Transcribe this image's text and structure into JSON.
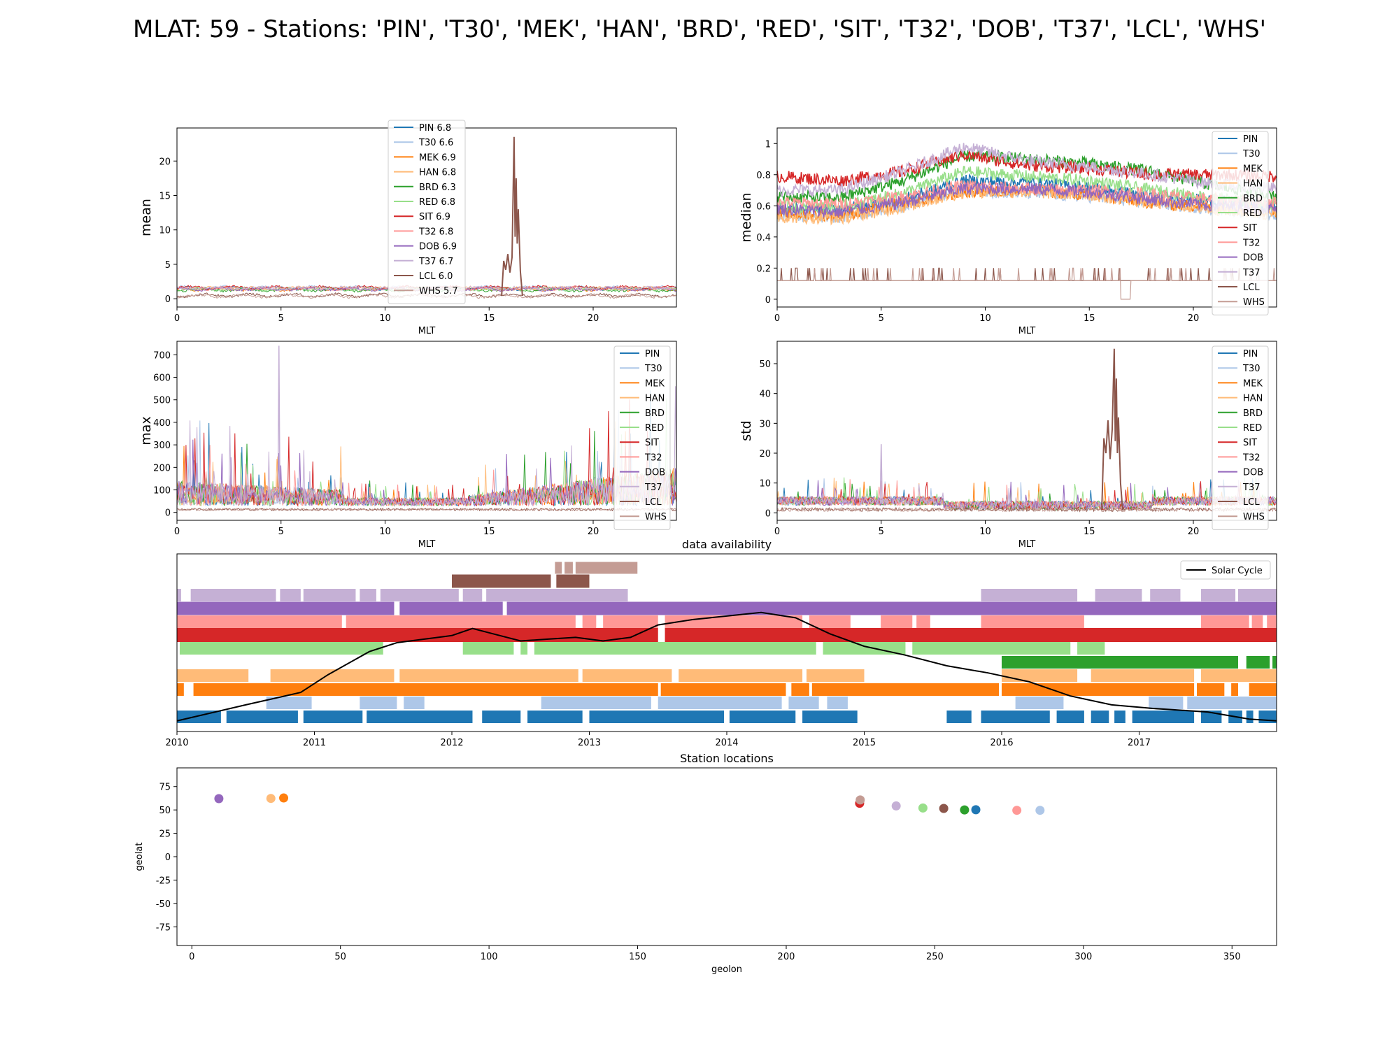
{
  "figure": {
    "title": "MLAT: 59 - Stations: 'PIN', 'T30', 'MEK', 'HAN', 'BRD', 'RED', 'SIT', 'T32', 'DOB', 'T37', 'LCL', 'WHS'"
  },
  "stations": [
    {
      "code": "PIN",
      "color": "#1f77b4"
    },
    {
      "code": "T30",
      "color": "#aec7e8"
    },
    {
      "code": "MEK",
      "color": "#ff7f0e"
    },
    {
      "code": "HAN",
      "color": "#ffbb78"
    },
    {
      "code": "BRD",
      "color": "#2ca02c"
    },
    {
      "code": "RED",
      "color": "#98df8a"
    },
    {
      "code": "SIT",
      "color": "#d62728"
    },
    {
      "code": "T32",
      "color": "#ff9896"
    },
    {
      "code": "DOB",
      "color": "#9467bd"
    },
    {
      "code": "T37",
      "color": "#c5b0d5"
    },
    {
      "code": "LCL",
      "color": "#8c564b"
    },
    {
      "code": "WHS",
      "color": "#c49c94"
    }
  ],
  "chart_data": [
    {
      "id": "mean",
      "type": "line",
      "xlabel": "MLT",
      "ylabel": "mean",
      "xlim": [
        0,
        24
      ],
      "ylim": [
        -1.2,
        24.8
      ],
      "xticks": [
        0,
        5,
        10,
        15,
        20
      ],
      "yticks": [
        0,
        5,
        10,
        15,
        20
      ],
      "legend": "top-center",
      "legend_labels": [
        "PIN 6.8",
        "T30 6.6",
        "MEK 6.9",
        "HAN 6.8",
        "BRD 6.3",
        "RED 6.8",
        "SIT 6.9",
        "T32 6.8",
        "DOB 6.9",
        "T37 6.7",
        "LCL 6.0",
        "WHS 5.7"
      ],
      "typical_level": [
        1.5,
        1.6,
        1.4,
        1.5,
        1.3,
        1.4,
        1.6,
        1.5,
        1.4,
        1.5,
        0.5,
        0.4
      ],
      "spike": {
        "station": "LCL",
        "x": [
          15.6,
          15.7,
          15.8,
          15.9,
          16.0,
          16.1,
          16.2,
          16.25,
          16.3,
          16.35,
          16.4,
          16.5,
          16.6
        ],
        "y": [
          0.4,
          5.5,
          4.2,
          6.5,
          3.8,
          6.0,
          23.5,
          9.0,
          17.5,
          8.0,
          13.0,
          4.0,
          0.4
        ]
      }
    },
    {
      "id": "median",
      "type": "line",
      "xlabel": "MLT",
      "ylabel": "median",
      "xlim": [
        0,
        24
      ],
      "ylim": [
        -0.05,
        1.1
      ],
      "xticks": [
        0,
        5,
        10,
        15,
        20
      ],
      "yticks": [
        0.0,
        0.2,
        0.4,
        0.6,
        0.8,
        1.0
      ],
      "legend": "right",
      "legend_labels": [
        "PIN",
        "T30",
        "MEK",
        "HAN",
        "BRD",
        "RED",
        "SIT",
        "T32",
        "DOB",
        "T37",
        "LCL",
        "WHS"
      ],
      "x": [
        0,
        3,
        6,
        9,
        12,
        15,
        18,
        21,
        24
      ],
      "series": [
        {
          "name": "PIN",
          "values": [
            0.58,
            0.57,
            0.64,
            0.76,
            0.75,
            0.72,
            0.66,
            0.63,
            0.6
          ]
        },
        {
          "name": "T30",
          "values": [
            0.54,
            0.53,
            0.6,
            0.7,
            0.68,
            0.66,
            0.62,
            0.58,
            0.55
          ]
        },
        {
          "name": "MEK",
          "values": [
            0.55,
            0.54,
            0.61,
            0.69,
            0.7,
            0.67,
            0.62,
            0.59,
            0.56
          ]
        },
        {
          "name": "HAN",
          "values": [
            0.53,
            0.52,
            0.59,
            0.69,
            0.69,
            0.67,
            0.62,
            0.58,
            0.54
          ]
        },
        {
          "name": "BRD",
          "values": [
            0.66,
            0.65,
            0.76,
            0.92,
            0.9,
            0.87,
            0.82,
            0.73,
            0.67
          ]
        },
        {
          "name": "RED",
          "values": [
            0.6,
            0.59,
            0.68,
            0.82,
            0.79,
            0.76,
            0.7,
            0.65,
            0.61
          ]
        },
        {
          "name": "SIT",
          "values": [
            0.79,
            0.76,
            0.82,
            0.93,
            0.86,
            0.84,
            0.8,
            0.8,
            0.79
          ]
        },
        {
          "name": "T32",
          "values": [
            0.62,
            0.61,
            0.66,
            0.73,
            0.71,
            0.7,
            0.67,
            0.64,
            0.62
          ]
        },
        {
          "name": "DOB",
          "values": [
            0.58,
            0.56,
            0.62,
            0.71,
            0.71,
            0.69,
            0.64,
            0.6,
            0.58
          ]
        },
        {
          "name": "T37",
          "values": [
            0.7,
            0.7,
            0.82,
            0.98,
            0.89,
            0.85,
            0.8,
            0.74,
            0.71
          ]
        },
        {
          "name": "LCL",
          "values": [
            0.12,
            0.12,
            0.12,
            0.12,
            0.12,
            0.12,
            0.12,
            0.12,
            0.12
          ]
        },
        {
          "name": "WHS",
          "values": [
            0.12,
            0.12,
            0.12,
            0.12,
            0.12,
            0.12,
            0.12,
            0.12,
            0.12
          ]
        }
      ]
    },
    {
      "id": "max",
      "type": "line",
      "xlabel": "MLT",
      "ylabel": "max",
      "xlim": [
        0,
        24
      ],
      "ylim": [
        -35,
        760
      ],
      "xticks": [
        0,
        5,
        10,
        15,
        20
      ],
      "yticks": [
        0,
        100,
        200,
        300,
        400,
        500,
        600,
        700
      ],
      "legend": "right",
      "legend_labels": [
        "PIN",
        "T30",
        "MEK",
        "HAN",
        "BRD",
        "RED",
        "SIT",
        "T32",
        "DOB",
        "T37",
        "LCL",
        "WHS"
      ],
      "peak": {
        "station": "T37",
        "x": 4.9,
        "y": 740
      }
    },
    {
      "id": "std",
      "type": "line",
      "xlabel": "MLT",
      "ylabel": "std",
      "xlim": [
        0,
        24
      ],
      "ylim": [
        -2.5,
        57.5
      ],
      "xticks": [
        0,
        5,
        10,
        15,
        20
      ],
      "yticks": [
        0,
        10,
        20,
        30,
        40,
        50
      ],
      "legend": "right",
      "legend_labels": [
        "PIN",
        "T30",
        "MEK",
        "HAN",
        "BRD",
        "RED",
        "SIT",
        "T32",
        "DOB",
        "T37",
        "LCL",
        "WHS"
      ],
      "spike": {
        "station": "LCL",
        "x": [
          15.6,
          15.7,
          15.8,
          15.9,
          16.0,
          16.1,
          16.2,
          16.25,
          16.3,
          16.35,
          16.4,
          16.5,
          16.6
        ],
        "y": [
          1.0,
          25,
          20,
          31,
          18,
          28,
          55,
          24,
          45,
          20,
          32,
          10,
          1.0
        ]
      }
    },
    {
      "id": "availability",
      "type": "bar",
      "title": "data availability",
      "xlim": [
        2010.0,
        2018.0
      ],
      "xticks": [
        2010,
        2011,
        2012,
        2013,
        2014,
        2015,
        2016,
        2017
      ],
      "legend": "top-right",
      "legend_label": "Solar Cycle",
      "rows": [
        {
          "station": "PIN",
          "spans": [
            [
              2010.0,
              2010.32
            ],
            [
              2010.36,
              2010.88
            ],
            [
              2010.92,
              2011.35
            ],
            [
              2011.38,
              2012.15
            ],
            [
              2012.22,
              2012.5
            ],
            [
              2012.55,
              2012.95
            ],
            [
              2013.0,
              2013.98
            ],
            [
              2014.02,
              2014.5
            ],
            [
              2014.55,
              2014.95
            ],
            [
              2015.6,
              2015.78
            ],
            [
              2015.85,
              2016.35
            ],
            [
              2016.4,
              2016.6
            ],
            [
              2016.65,
              2016.78
            ],
            [
              2016.82,
              2016.9
            ],
            [
              2016.95,
              2017.4
            ],
            [
              2017.45,
              2017.6
            ],
            [
              2017.65,
              2017.75
            ],
            [
              2017.78,
              2017.83
            ],
            [
              2017.87,
              2018.0
            ]
          ]
        },
        {
          "station": "T30",
          "spans": [
            [
              2010.65,
              2010.98
            ],
            [
              2011.33,
              2011.6
            ],
            [
              2011.65,
              2011.8
            ],
            [
              2012.65,
              2013.45
            ],
            [
              2013.5,
              2014.4
            ],
            [
              2014.45,
              2014.67
            ],
            [
              2014.73,
              2014.88
            ],
            [
              2016.1,
              2016.45
            ],
            [
              2017.07,
              2017.32
            ],
            [
              2017.35,
              2018.0
            ]
          ]
        },
        {
          "station": "MEK",
          "spans": [
            [
              2010.0,
              2010.05
            ],
            [
              2010.12,
              2013.5
            ],
            [
              2013.52,
              2014.43
            ],
            [
              2014.47,
              2014.6
            ],
            [
              2014.62,
              2015.98
            ],
            [
              2016.0,
              2017.4
            ],
            [
              2017.42,
              2017.62
            ],
            [
              2017.67,
              2017.72
            ],
            [
              2017.8,
              2018.0
            ]
          ]
        },
        {
          "station": "HAN",
          "spans": [
            [
              2010.0,
              2010.52
            ],
            [
              2010.68,
              2011.58
            ],
            [
              2011.62,
              2012.92
            ],
            [
              2012.95,
              2013.6
            ],
            [
              2013.65,
              2014.55
            ],
            [
              2014.58,
              2015.0
            ],
            [
              2016.0,
              2016.55
            ],
            [
              2016.65,
              2017.4
            ],
            [
              2017.45,
              2018.0
            ]
          ]
        },
        {
          "station": "BRD",
          "spans": [
            [
              2016.0,
              2017.72
            ],
            [
              2017.78,
              2017.95
            ],
            [
              2017.97,
              2018.0
            ]
          ]
        },
        {
          "station": "RED",
          "spans": [
            [
              2010.02,
              2011.5
            ],
            [
              2012.08,
              2012.45
            ],
            [
              2012.5,
              2012.55
            ],
            [
              2012.6,
              2014.65
            ],
            [
              2014.7,
              2015.3
            ],
            [
              2015.35,
              2016.5
            ],
            [
              2016.55,
              2016.75
            ]
          ]
        },
        {
          "station": "SIT",
          "spans": [
            [
              2010.0,
              2013.5
            ],
            [
              2013.55,
              2018.0
            ]
          ]
        },
        {
          "station": "T32",
          "spans": [
            [
              2010.0,
              2011.2
            ],
            [
              2011.23,
              2012.9
            ],
            [
              2012.95,
              2013.05
            ],
            [
              2013.1,
              2013.5
            ],
            [
              2013.55,
              2014.55
            ],
            [
              2014.6,
              2014.9
            ],
            [
              2015.12,
              2015.35
            ],
            [
              2015.38,
              2015.48
            ],
            [
              2015.85,
              2016.6
            ],
            [
              2017.45,
              2017.8
            ],
            [
              2017.82,
              2017.9
            ],
            [
              2017.93,
              2018.0
            ]
          ]
        },
        {
          "station": "DOB",
          "spans": [
            [
              2010.0,
              2011.58
            ],
            [
              2011.62,
              2012.37
            ],
            [
              2012.4,
              2018.0
            ]
          ]
        },
        {
          "station": "T37",
          "spans": [
            [
              2010.0,
              2010.03
            ],
            [
              2010.1,
              2010.72
            ],
            [
              2010.75,
              2010.9
            ],
            [
              2010.92,
              2011.3
            ],
            [
              2011.33,
              2011.45
            ],
            [
              2011.48,
              2012.05
            ],
            [
              2012.08,
              2012.22
            ],
            [
              2012.25,
              2013.28
            ],
            [
              2015.85,
              2016.55
            ],
            [
              2016.68,
              2017.02
            ],
            [
              2017.08,
              2017.3
            ],
            [
              2017.45,
              2017.7
            ],
            [
              2017.72,
              2018.0
            ]
          ]
        },
        {
          "station": "LCL",
          "spans": [
            [
              2012.0,
              2012.72
            ],
            [
              2012.76,
              2013.0
            ]
          ]
        },
        {
          "station": "WHS",
          "spans": [
            [
              2012.75,
              2012.8
            ],
            [
              2012.82,
              2012.88
            ],
            [
              2012.9,
              2013.35
            ]
          ]
        }
      ],
      "solar_cycle": {
        "x": [
          2010.0,
          2010.5,
          2010.9,
          2011.1,
          2011.4,
          2011.6,
          2011.8,
          2012.0,
          2012.15,
          2012.3,
          2012.5,
          2012.7,
          2012.9,
          2013.1,
          2013.3,
          2013.5,
          2013.75,
          2014.0,
          2014.25,
          2014.5,
          2014.75,
          2015.0,
          2015.3,
          2015.6,
          2015.9,
          2016.2,
          2016.5,
          2016.8,
          2017.1,
          2017.5,
          2017.8,
          2018.0
        ],
        "y": [
          0.06,
          0.15,
          0.22,
          0.32,
          0.45,
          0.5,
          0.52,
          0.54,
          0.58,
          0.55,
          0.51,
          0.52,
          0.53,
          0.51,
          0.53,
          0.6,
          0.63,
          0.65,
          0.67,
          0.64,
          0.55,
          0.48,
          0.43,
          0.37,
          0.33,
          0.28,
          0.2,
          0.15,
          0.13,
          0.11,
          0.07,
          0.06
        ]
      }
    },
    {
      "id": "locations",
      "type": "scatter",
      "title": "Station locations",
      "xlabel": "geolon",
      "ylabel": "geolat",
      "xlim": [
        -5,
        365
      ],
      "ylim": [
        -95,
        95
      ],
      "xticks": [
        0,
        50,
        100,
        150,
        200,
        250,
        300,
        350
      ],
      "yticks": [
        -75,
        -50,
        -25,
        0,
        25,
        50,
        75
      ],
      "points": [
        {
          "station": "DOB",
          "lon": 9.1,
          "lat": 62.1
        },
        {
          "station": "HAN",
          "lon": 26.6,
          "lat": 62.3
        },
        {
          "station": "MEK",
          "lon": 30.9,
          "lat": 62.8
        },
        {
          "station": "SIT",
          "lon": 224.7,
          "lat": 57.1
        },
        {
          "station": "WHS",
          "lon": 224.9,
          "lat": 60.7
        },
        {
          "station": "T37",
          "lon": 237.0,
          "lat": 54.3
        },
        {
          "station": "RED",
          "lon": 246.0,
          "lat": 52.1
        },
        {
          "station": "LCL",
          "lon": 253.0,
          "lat": 51.6
        },
        {
          "station": "BRD",
          "lon": 260.0,
          "lat": 50.0
        },
        {
          "station": "PIN",
          "lon": 263.8,
          "lat": 50.2
        },
        {
          "station": "T32",
          "lon": 277.6,
          "lat": 49.6
        },
        {
          "station": "T30",
          "lon": 285.4,
          "lat": 49.6
        }
      ]
    }
  ]
}
